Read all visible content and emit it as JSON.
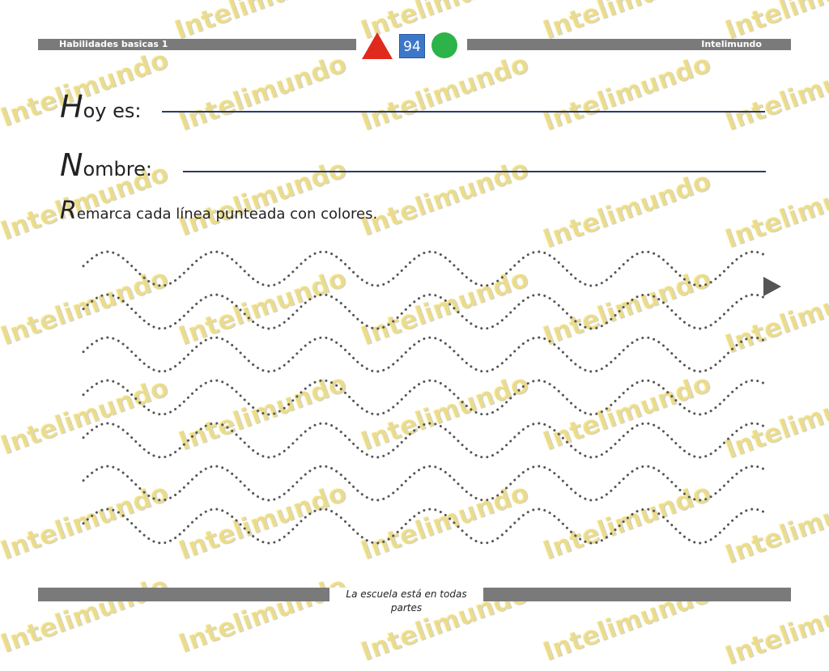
{
  "header": {
    "left_label": "Habilidades basicas 1",
    "right_label": "Intelimundo",
    "page_number": "94"
  },
  "form": {
    "date_initial": "H",
    "date_rest": "oy es:",
    "name_initial": "N",
    "name_rest": "ombre:"
  },
  "instruction": {
    "initial": "R",
    "rest": "emarca cada línea punteada con colores."
  },
  "worksheet": {
    "wave_rows": 7,
    "arrow_color": "#555555",
    "dot_color": "#555555"
  },
  "footer": {
    "text": "La escuela está en todas partes"
  },
  "watermark": {
    "text": "Intelimundo",
    "color": "#f7e26a"
  }
}
